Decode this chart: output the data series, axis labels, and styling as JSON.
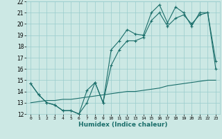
{
  "title": "",
  "xlabel": "Humidex (Indice chaleur)",
  "xlim": [
    -0.5,
    23.5
  ],
  "ylim": [
    12,
    22
  ],
  "xticks": [
    0,
    1,
    2,
    3,
    4,
    5,
    6,
    7,
    8,
    9,
    10,
    11,
    12,
    13,
    14,
    15,
    16,
    17,
    18,
    19,
    20,
    21,
    22,
    23
  ],
  "yticks": [
    12,
    13,
    14,
    15,
    16,
    17,
    18,
    19,
    20,
    21,
    22
  ],
  "background_color": "#cce8e4",
  "grid_color": "#99cccc",
  "line_color": "#1a6e6a",
  "hours": [
    0,
    1,
    2,
    3,
    4,
    5,
    6,
    7,
    8,
    9,
    10,
    11,
    12,
    13,
    14,
    15,
    16,
    17,
    18,
    19,
    20,
    21,
    22,
    23
  ],
  "line_max": [
    14.7,
    13.7,
    13.0,
    12.8,
    12.3,
    12.3,
    12.0,
    14.1,
    14.8,
    13.0,
    17.7,
    18.5,
    19.5,
    19.1,
    19.0,
    21.0,
    21.7,
    20.1,
    21.5,
    21.0,
    19.8,
    21.0,
    21.0,
    16.7
  ],
  "line_mean": [
    14.7,
    13.7,
    13.0,
    12.8,
    12.3,
    12.3,
    12.0,
    13.0,
    14.8,
    13.0,
    16.3,
    17.7,
    18.5,
    18.5,
    18.8,
    20.3,
    21.0,
    19.8,
    20.5,
    20.8,
    20.0,
    20.8,
    21.0,
    16.0
  ],
  "line_min": [
    13.0,
    13.1,
    13.2,
    13.2,
    13.3,
    13.3,
    13.4,
    13.5,
    13.6,
    13.7,
    13.8,
    13.9,
    14.0,
    14.0,
    14.1,
    14.2,
    14.3,
    14.5,
    14.6,
    14.7,
    14.8,
    14.9,
    15.0,
    15.0
  ]
}
